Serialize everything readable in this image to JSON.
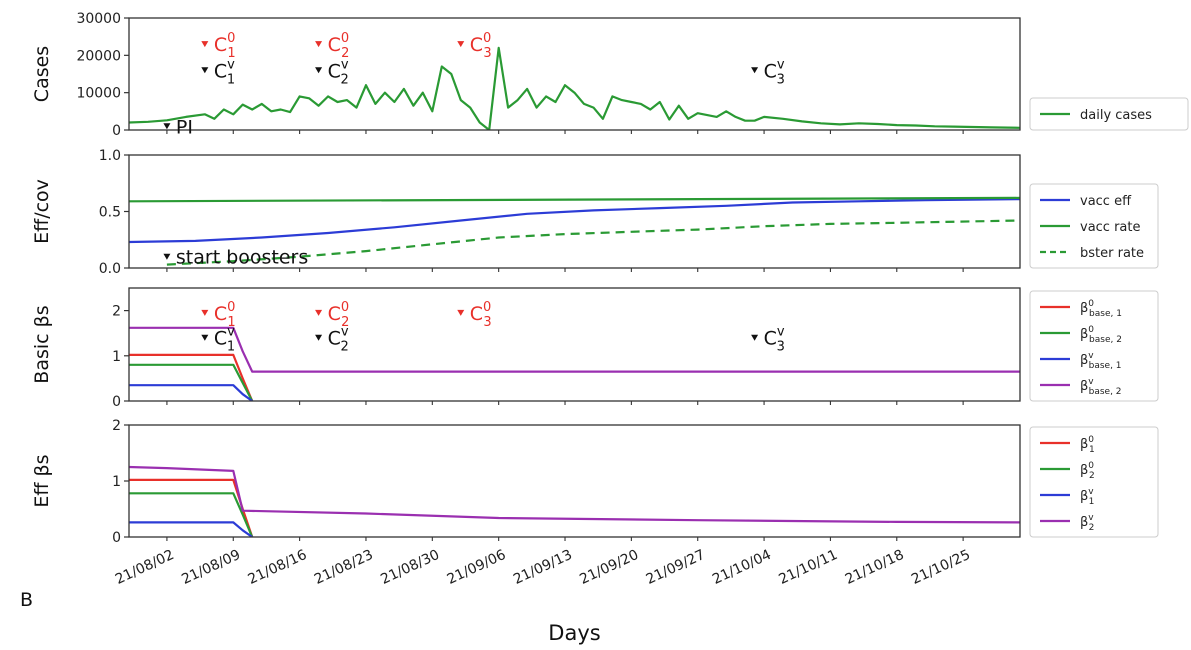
{
  "figure": {
    "panel_letter": "B",
    "xlabel": "Days",
    "x_ticks": [
      "21/08/02",
      "21/08/09",
      "21/08/16",
      "21/08/23",
      "21/08/30",
      "21/09/06",
      "21/09/13",
      "21/09/20",
      "21/09/27",
      "21/10/04",
      "21/10/11",
      "21/10/18",
      "21/10/25"
    ],
    "colors": {
      "red": "#e8302a",
      "green": "#2a9a34",
      "blue": "#2c3cd6",
      "purple": "#9a2fb0",
      "black": "#111111"
    }
  },
  "chart_data": [
    {
      "type": "line",
      "ylabel": "Cases",
      "ylim": [
        0,
        30000
      ],
      "y_ticks": [
        "0",
        "10000",
        "20000",
        "30000"
      ],
      "x_start": "2021-07-29",
      "x_end": "2021-10-31",
      "annotations": [
        {
          "label": "PI",
          "date": "2021-08-02",
          "y": 1000,
          "color": "black",
          "sup": "",
          "sub": ""
        },
        {
          "label": "C",
          "sup": "0",
          "sub": "1",
          "date": "2021-08-06",
          "y": 23000,
          "color": "red"
        },
        {
          "label": "C",
          "sup": "v",
          "sub": "1",
          "date": "2021-08-06",
          "y": 16000,
          "color": "black"
        },
        {
          "label": "C",
          "sup": "0",
          "sub": "2",
          "date": "2021-08-18",
          "y": 23000,
          "color": "red"
        },
        {
          "label": "C",
          "sup": "v",
          "sub": "2",
          "date": "2021-08-18",
          "y": 16000,
          "color": "black"
        },
        {
          "label": "C",
          "sup": "0",
          "sub": "3",
          "date": "2021-09-02",
          "y": 23000,
          "color": "red"
        },
        {
          "label": "C",
          "sup": "v",
          "sub": "3",
          "date": "2021-10-03",
          "y": 16000,
          "color": "black"
        }
      ],
      "legend": [
        {
          "label": "daily cases",
          "color": "green",
          "dash": false
        }
      ],
      "series": [
        {
          "name": "daily cases",
          "color": "green",
          "x": [
            "2021-07-29",
            "2021-07-31",
            "2021-08-02",
            "2021-08-04",
            "2021-08-06",
            "2021-08-07",
            "2021-08-08",
            "2021-08-09",
            "2021-08-10",
            "2021-08-11",
            "2021-08-12",
            "2021-08-13",
            "2021-08-14",
            "2021-08-15",
            "2021-08-16",
            "2021-08-17",
            "2021-08-18",
            "2021-08-19",
            "2021-08-20",
            "2021-08-21",
            "2021-08-22",
            "2021-08-23",
            "2021-08-24",
            "2021-08-25",
            "2021-08-26",
            "2021-08-27",
            "2021-08-28",
            "2021-08-29",
            "2021-08-30",
            "2021-08-31",
            "2021-09-01",
            "2021-09-02",
            "2021-09-03",
            "2021-09-04",
            "2021-09-05",
            "2021-09-06",
            "2021-09-07",
            "2021-09-08",
            "2021-09-09",
            "2021-09-10",
            "2021-09-11",
            "2021-09-12",
            "2021-09-13",
            "2021-09-14",
            "2021-09-15",
            "2021-09-16",
            "2021-09-17",
            "2021-09-18",
            "2021-09-19",
            "2021-09-20",
            "2021-09-21",
            "2021-09-22",
            "2021-09-23",
            "2021-09-24",
            "2021-09-25",
            "2021-09-26",
            "2021-09-27",
            "2021-09-28",
            "2021-09-29",
            "2021-09-30",
            "2021-10-01",
            "2021-10-02",
            "2021-10-03",
            "2021-10-04",
            "2021-10-06",
            "2021-10-08",
            "2021-10-10",
            "2021-10-12",
            "2021-10-14",
            "2021-10-16",
            "2021-10-18",
            "2021-10-20",
            "2021-10-22",
            "2021-10-24",
            "2021-10-26",
            "2021-10-28",
            "2021-10-31"
          ],
          "y": [
            2000,
            2200,
            2600,
            3500,
            4200,
            3000,
            5500,
            4200,
            6800,
            5500,
            7000,
            5000,
            5500,
            4800,
            9000,
            8500,
            6500,
            9000,
            7500,
            8000,
            6000,
            12000,
            7000,
            10000,
            7500,
            11000,
            6500,
            10000,
            5000,
            17000,
            15000,
            8000,
            6000,
            2000,
            0,
            22000,
            6000,
            8000,
            11000,
            6000,
            9000,
            7500,
            12000,
            10000,
            7000,
            6000,
            3000,
            9000,
            8000,
            7500,
            7000,
            5500,
            7500,
            2800,
            6500,
            3000,
            4500,
            4000,
            3500,
            5000,
            3500,
            2500,
            2500,
            3500,
            3000,
            2300,
            1800,
            1500,
            1800,
            1600,
            1300,
            1200,
            1000,
            900,
            800,
            700,
            600
          ]
        }
      ]
    },
    {
      "type": "line",
      "ylabel": "Eff/cov",
      "ylim": [
        0,
        1
      ],
      "y_ticks": [
        "0.0",
        "0.5",
        "1.0"
      ],
      "annotations": [
        {
          "label": "start boosters",
          "date": "2021-08-02",
          "y": 0.1,
          "color": "black",
          "sup": "",
          "sub": ""
        }
      ],
      "legend": [
        {
          "label": "vacc eff",
          "color": "blue",
          "dash": false
        },
        {
          "label": "vacc rate",
          "color": "green",
          "dash": false
        },
        {
          "label": "bster rate",
          "color": "green",
          "dash": true
        }
      ],
      "series": [
        {
          "name": "vacc eff",
          "color": "blue",
          "dash": false,
          "x": [
            "2021-07-29",
            "2021-08-05",
            "2021-08-12",
            "2021-08-19",
            "2021-08-26",
            "2021-09-02",
            "2021-09-09",
            "2021-09-16",
            "2021-09-23",
            "2021-09-30",
            "2021-10-07",
            "2021-10-14",
            "2021-10-21",
            "2021-10-31"
          ],
          "y": [
            0.23,
            0.24,
            0.27,
            0.31,
            0.36,
            0.42,
            0.48,
            0.51,
            0.53,
            0.55,
            0.58,
            0.59,
            0.6,
            0.61
          ]
        },
        {
          "name": "vacc rate",
          "color": "green",
          "dash": false,
          "x": [
            "2021-07-29",
            "2021-10-31"
          ],
          "y": [
            0.59,
            0.62
          ]
        },
        {
          "name": "bster rate",
          "color": "green",
          "dash": true,
          "x": [
            "2021-08-02",
            "2021-08-09",
            "2021-08-16",
            "2021-08-23",
            "2021-08-30",
            "2021-09-06",
            "2021-09-13",
            "2021-09-20",
            "2021-09-27",
            "2021-10-04",
            "2021-10-11",
            "2021-10-18",
            "2021-10-31"
          ],
          "y": [
            0.03,
            0.06,
            0.1,
            0.15,
            0.21,
            0.27,
            0.3,
            0.32,
            0.34,
            0.37,
            0.39,
            0.4,
            0.42
          ]
        }
      ]
    },
    {
      "type": "line",
      "ylabel": "Basic βs",
      "ylim": [
        0,
        2.5
      ],
      "y_ticks": [
        "0",
        "1",
        "2"
      ],
      "annotations": [
        {
          "label": "C",
          "sup": "0",
          "sub": "1",
          "date": "2021-08-06",
          "y": 1.95,
          "color": "red"
        },
        {
          "label": "C",
          "sup": "v",
          "sub": "1",
          "date": "2021-08-06",
          "y": 1.4,
          "color": "black"
        },
        {
          "label": "C",
          "sup": "0",
          "sub": "2",
          "date": "2021-08-18",
          "y": 1.95,
          "color": "red"
        },
        {
          "label": "C",
          "sup": "v",
          "sub": "2",
          "date": "2021-08-18",
          "y": 1.4,
          "color": "black"
        },
        {
          "label": "C",
          "sup": "0",
          "sub": "3",
          "date": "2021-09-02",
          "y": 1.95,
          "color": "red"
        },
        {
          "label": "C",
          "sup": "v",
          "sub": "3",
          "date": "2021-10-03",
          "y": 1.4,
          "color": "black"
        }
      ],
      "legend": [
        {
          "label": "β",
          "sup": "0",
          "sub": "base, 1",
          "color": "red",
          "dash": false
        },
        {
          "label": "β",
          "sup": "0",
          "sub": "base, 2",
          "color": "green",
          "dash": false
        },
        {
          "label": "β",
          "sup": "v",
          "sub": "base, 1",
          "color": "blue",
          "dash": false
        },
        {
          "label": "β",
          "sup": "v",
          "sub": "base, 2",
          "color": "purple",
          "dash": false
        }
      ],
      "series": [
        {
          "color": "red",
          "x": [
            "2021-07-29",
            "2021-08-09",
            "2021-08-10",
            "2021-08-11"
          ],
          "y": [
            1.02,
            1.02,
            0.5,
            0
          ]
        },
        {
          "color": "green",
          "x": [
            "2021-07-29",
            "2021-08-09",
            "2021-08-10",
            "2021-08-11"
          ],
          "y": [
            0.8,
            0.8,
            0.4,
            0
          ]
        },
        {
          "color": "blue",
          "x": [
            "2021-07-29",
            "2021-08-09",
            "2021-08-10",
            "2021-08-11"
          ],
          "y": [
            0.35,
            0.35,
            0.15,
            0
          ]
        },
        {
          "color": "purple",
          "x": [
            "2021-07-29",
            "2021-08-09",
            "2021-08-10",
            "2021-08-11",
            "2021-10-31"
          ],
          "y": [
            1.62,
            1.62,
            1.1,
            0.65,
            0.65
          ]
        }
      ]
    },
    {
      "type": "line",
      "ylabel": "Eff βs",
      "ylim": [
        0,
        2
      ],
      "y_ticks": [
        "0",
        "1",
        "2"
      ],
      "annotations": [],
      "legend": [
        {
          "label": "β",
          "sup": "0",
          "sub": "1",
          "color": "red",
          "dash": false
        },
        {
          "label": "β",
          "sup": "0",
          "sub": "2",
          "color": "green",
          "dash": false
        },
        {
          "label": "β",
          "sup": "v",
          "sub": "1",
          "color": "blue",
          "dash": false
        },
        {
          "label": "β",
          "sup": "v",
          "sub": "2",
          "color": "purple",
          "dash": false
        }
      ],
      "series": [
        {
          "color": "red",
          "x": [
            "2021-07-29",
            "2021-08-09",
            "2021-08-10",
            "2021-08-11"
          ],
          "y": [
            1.02,
            1.02,
            0.5,
            0
          ]
        },
        {
          "color": "green",
          "x": [
            "2021-07-29",
            "2021-08-09",
            "2021-08-10",
            "2021-08-11"
          ],
          "y": [
            0.78,
            0.78,
            0.4,
            0
          ]
        },
        {
          "color": "blue",
          "x": [
            "2021-07-29",
            "2021-08-09",
            "2021-08-10",
            "2021-08-11"
          ],
          "y": [
            0.26,
            0.26,
            0.12,
            0
          ]
        },
        {
          "color": "purple",
          "x": [
            "2021-07-29",
            "2021-08-02",
            "2021-08-09",
            "2021-08-10",
            "2021-08-23",
            "2021-09-06",
            "2021-09-27",
            "2021-10-18",
            "2021-10-31"
          ],
          "y": [
            1.25,
            1.23,
            1.18,
            0.47,
            0.42,
            0.34,
            0.3,
            0.27,
            0.26
          ]
        }
      ]
    }
  ]
}
